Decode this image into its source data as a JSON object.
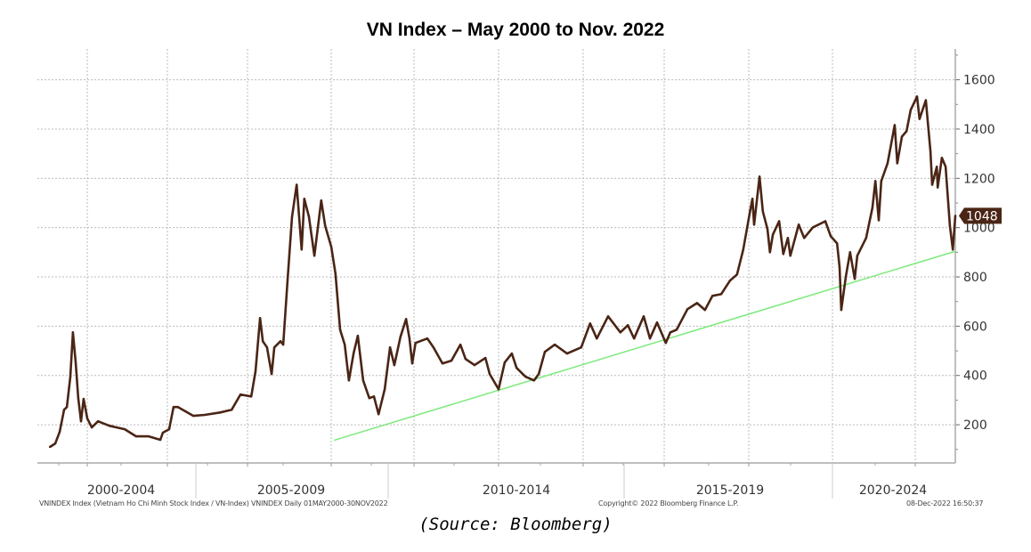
{
  "chart_data": {
    "type": "line",
    "title": "VN Index – May 2000 to Nov. 2022",
    "xlabel": "",
    "ylabel": "",
    "y_axis_side": "right",
    "ylim": [
      45,
      1725
    ],
    "yticks": [
      200,
      400,
      600,
      800,
      1000,
      1200,
      1400,
      1600
    ],
    "x_period_labels": [
      "2000-2004",
      "2005-2009",
      "2010-2014",
      "2015-2019",
      "2020-2024"
    ],
    "grid": true,
    "last_value_label": "1048",
    "colors": {
      "series": "#4a2515",
      "trend": "#7cea7c",
      "badge": "#4a2515"
    },
    "series": [
      {
        "x": [
          2000.36,
          2000.53,
          2000.67,
          2000.81,
          2000.9,
          2001.01,
          2001.09,
          2001.18,
          2001.26,
          2001.35,
          2001.43,
          2001.55,
          2001.69,
          2001.89,
          2002.25,
          2002.74,
          2003.1,
          2003.5,
          2003.87,
          2003.95,
          2004.15,
          2004.29,
          2004.43,
          2004.92,
          2005.23,
          2005.63,
          2005.93,
          2006.16,
          2006.44,
          2006.55,
          2006.67,
          2006.74,
          2006.85,
          2006.97,
          2007.04,
          2007.2,
          2007.27,
          2007.38,
          2007.5,
          2007.62,
          2007.75,
          2007.82,
          2007.94,
          2008.08,
          2008.26,
          2008.36,
          2008.52,
          2008.63,
          2008.75,
          2008.87,
          2008.98,
          2009.1,
          2009.21,
          2009.35,
          2009.51,
          2009.63,
          2009.75,
          2009.91,
          2010.04,
          2010.13,
          2010.26,
          2010.38,
          2010.45,
          2010.51,
          2010.58,
          2010.83,
          2010.96,
          2011.15,
          2011.34,
          2011.53,
          2011.64,
          2011.83,
          2012.06,
          2012.15,
          2012.34,
          2012.47,
          2012.62,
          2012.72,
          2012.91,
          2013.09,
          2013.19,
          2013.32,
          2013.53,
          2013.79,
          2014.09,
          2014.28,
          2014.42,
          2014.66,
          2014.92,
          2015.09,
          2015.24,
          2015.47,
          2015.62,
          2015.79,
          2016.0,
          2016.11,
          2016.26,
          2016.52,
          2016.75,
          2016.94,
          2017.12,
          2017.33,
          2017.54,
          2017.71,
          2017.86,
          2018.01,
          2018.08,
          2018.12,
          2018.25,
          2018.33,
          2018.44,
          2018.5,
          2018.57,
          2018.72,
          2018.82,
          2018.93,
          2018.99,
          2019.19,
          2019.32,
          2019.53,
          2019.83,
          2019.96,
          2020.11,
          2020.17,
          2020.21,
          2020.32,
          2020.42,
          2020.53,
          2020.59,
          2020.8,
          2020.95,
          2021.02,
          2021.1,
          2021.16,
          2021.31,
          2021.48,
          2021.54,
          2021.65,
          2021.76,
          2021.86,
          2022.01,
          2022.07,
          2022.22,
          2022.33,
          2022.37,
          2022.48,
          2022.5,
          2022.6,
          2022.69,
          2022.79,
          2022.86,
          2022.92
        ],
        "values": [
          110,
          124,
          171,
          261,
          272,
          395,
          575,
          453,
          308,
          214,
          305,
          225,
          189,
          214,
          196,
          182,
          153,
          153,
          139,
          168,
          182,
          272,
          272,
          236,
          240,
          250,
          261,
          323,
          315,
          417,
          633,
          539,
          514,
          406,
          514,
          539,
          525,
          777,
          1044,
          1174,
          911,
          1117,
          1044,
          886,
          1110,
          1008,
          922,
          813,
          586,
          525,
          380,
          489,
          561,
          380,
          308,
          315,
          243,
          344,
          514,
          442,
          557,
          629,
          550,
          449,
          532,
          550,
          514,
          449,
          460,
          525,
          467,
          442,
          471,
          406,
          344,
          453,
          489,
          431,
          395,
          380,
          406,
          496,
          525,
          489,
          514,
          611,
          550,
          640,
          575,
          604,
          550,
          640,
          550,
          615,
          532,
          575,
          586,
          669,
          694,
          666,
          723,
          730,
          785,
          810,
          911,
          1055,
          1117,
          1012,
          1207,
          1066,
          994,
          900,
          972,
          1026,
          893,
          958,
          886,
          1012,
          958,
          1001,
          1026,
          965,
          936,
          839,
          666,
          803,
          900,
          792,
          886,
          958,
          1081,
          1189,
          1030,
          1189,
          1261,
          1416,
          1261,
          1369,
          1391,
          1478,
          1532,
          1441,
          1517,
          1308,
          1174,
          1247,
          1163,
          1283,
          1247,
          1008,
          911,
          1048
        ]
      },
      {
        "x": [
          2008.59,
          2022.92
        ],
        "values": [
          137,
          904
        ]
      }
    ]
  },
  "footer": {
    "left": "VNINDEX Index (Vietnam Ho Chi Minh Stock Index / VN-Index) VNINDEX  Daily 01MAY2000-30NOV2022",
    "center": "Copyright© 2022 Bloomberg Finance L.P.",
    "right": "08-Dec-2022 16:50:37"
  },
  "source": "(Source: Bloomberg)"
}
